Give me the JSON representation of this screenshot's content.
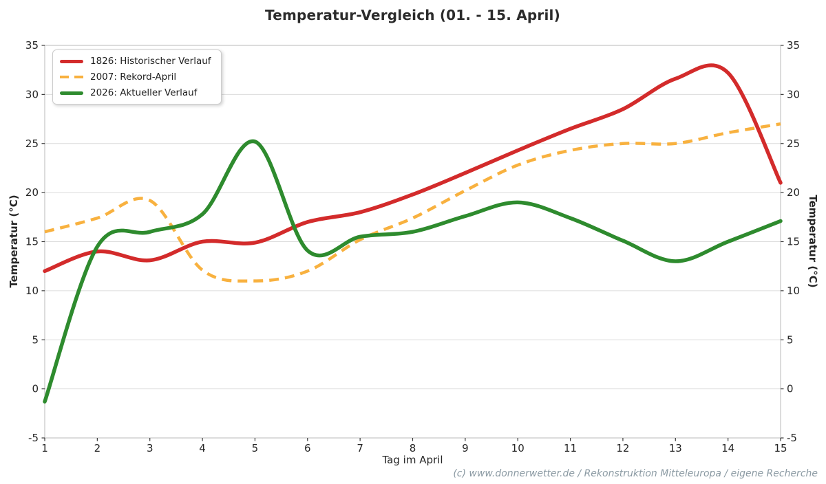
{
  "chart_data": {
    "type": "line",
    "title": "Temperatur-Vergleich (01. - 15. April)",
    "xlabel": "Tag im April",
    "ylabel_left": "Temperatur (°C)",
    "ylabel_right": "Temperatur (°C)",
    "x": [
      1,
      2,
      3,
      4,
      5,
      6,
      7,
      8,
      9,
      10,
      11,
      12,
      13,
      14,
      15
    ],
    "xticks": [
      1,
      2,
      3,
      4,
      5,
      6,
      7,
      8,
      9,
      10,
      11,
      12,
      13,
      14,
      15
    ],
    "yticks": [
      -5,
      0,
      5,
      10,
      15,
      20,
      25,
      30,
      35
    ],
    "xlim": [
      1,
      15
    ],
    "ylim": [
      -5,
      35
    ],
    "grid": "horizontal-only",
    "legend_position": "top-left",
    "colors": {
      "grid": "#dcdcdc",
      "spine": "#c4c4c4",
      "tick": "#3a3a3a",
      "tick_text": "#262626"
    },
    "series": [
      {
        "name": "1826: Historischer Verlauf",
        "color": "#d32b2b",
        "style": "solid",
        "width": 5.5,
        "values": [
          12.0,
          14.0,
          13.1,
          15.0,
          14.9,
          17.0,
          18.0,
          19.8,
          22.0,
          24.3,
          26.5,
          28.5,
          31.6,
          32.2,
          21.0
        ]
      },
      {
        "name": "2007: Rekord-April",
        "color": "#f8b13f",
        "style": "dashed",
        "width": 4.5,
        "values": [
          16.0,
          17.4,
          19.2,
          12.1,
          11.0,
          12.0,
          15.2,
          17.4,
          20.2,
          22.8,
          24.3,
          25.0,
          25.0,
          26.1,
          27.0
        ]
      },
      {
        "name": "2026: Aktueller Verlauf",
        "color": "#2e8b2e",
        "style": "solid",
        "width": 5.5,
        "values": [
          -1.3,
          14.5,
          16.0,
          17.8,
          25.2,
          14.1,
          15.5,
          16.0,
          17.6,
          19.0,
          17.4,
          15.1,
          13.0,
          15.0,
          17.1
        ]
      }
    ],
    "footer": "(c) www.donnerwetter.de / Rekonstruktion Mitteleuropa / eigene Recherche"
  }
}
